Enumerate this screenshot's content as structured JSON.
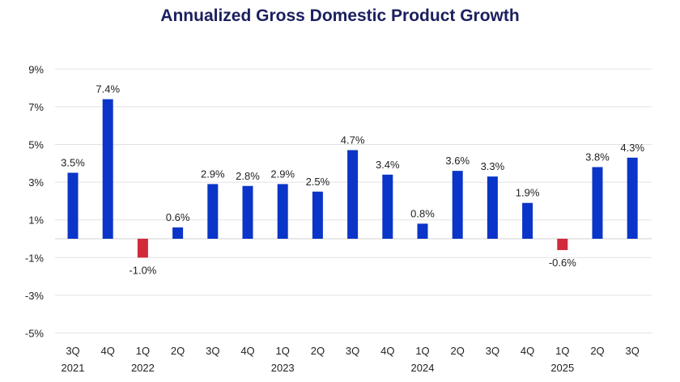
{
  "chart_data": {
    "type": "bar",
    "title": "Annualized Gross Domestic Product Growth",
    "categories": [
      "3Q",
      "4Q",
      "1Q",
      "2Q",
      "3Q",
      "4Q",
      "1Q",
      "2Q",
      "3Q",
      "4Q",
      "1Q",
      "2Q",
      "3Q",
      "4Q",
      "1Q",
      "2Q",
      "3Q"
    ],
    "year_labels": [
      "2021",
      "",
      "2022",
      "",
      "",
      "",
      "2023",
      "",
      "",
      "",
      "2024",
      "",
      "",
      "",
      "2025",
      "",
      ""
    ],
    "values": [
      3.5,
      7.4,
      -1.0,
      0.6,
      2.9,
      2.8,
      2.9,
      2.5,
      4.7,
      3.4,
      0.8,
      3.6,
      3.3,
      1.9,
      -0.6,
      3.8,
      4.3
    ],
    "data_labels": [
      "3.5%",
      "7.4%",
      "-1.0%",
      "0.6%",
      "2.9%",
      "2.8%",
      "2.9%",
      "2.5%",
      "4.7%",
      "3.4%",
      "0.8%",
      "3.6%",
      "3.3%",
      "1.9%",
      "-0.6%",
      "3.8%",
      "4.3%"
    ],
    "yticks": [
      9,
      7,
      5,
      3,
      1,
      -1,
      -3,
      -5
    ],
    "ytick_labels": [
      "9%",
      "7%",
      "5%",
      "3%",
      "1%",
      "-1%",
      "-3%",
      "-5%"
    ],
    "ylim": [
      -5,
      9
    ],
    "grid": true,
    "colors": {
      "positive": "#0a35c8",
      "negative": "#d22a3a",
      "title": "#1b1f5e",
      "grid": "#e2e2e2"
    }
  }
}
